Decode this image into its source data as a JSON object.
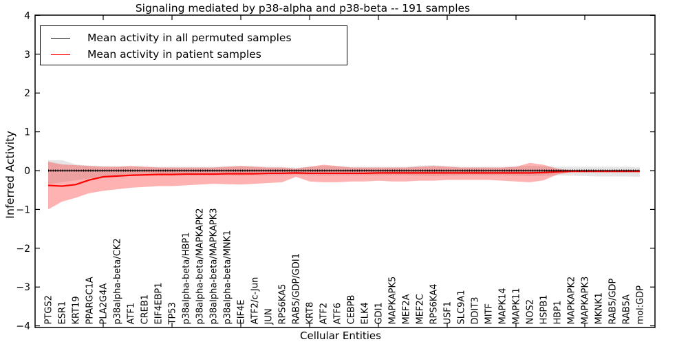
{
  "title": "Signaling mediated by p38-alpha and p38-beta -- 191 samples",
  "legend": [
    {
      "label": "Mean activity in all permuted samples",
      "color": "#000000"
    },
    {
      "label": "Mean activity in patient samples",
      "color": "#ff0000"
    }
  ],
  "axes": {
    "ylabel": "Inferred Activity",
    "xlabel": "Cellular Entities",
    "ytick_labels": [
      "4",
      "3",
      "2",
      "1",
      "0",
      "−1",
      "−2",
      "−3",
      "−4"
    ]
  },
  "chart_data": {
    "type": "line",
    "title": "Signaling mediated by p38-alpha and p38-beta -- 191 samples",
    "xlabel": "Cellular Entities",
    "ylabel": "Inferred Activity",
    "ylim": [
      -4,
      4
    ],
    "ytick_values": [
      4,
      3,
      2,
      1,
      0,
      -1,
      -2,
      -3,
      -4
    ],
    "xtick_positions": [
      5,
      10,
      15,
      20,
      25,
      30,
      35,
      40
    ],
    "grid": false,
    "legend_position": "upper left",
    "band_colors": {
      "permuted": "rgba(0,0,0,0.10)",
      "patient": "rgba(255,0,0,0.30)"
    },
    "categories": [
      "PTGS2",
      "ESR1",
      "KRT19",
      "PPARGC1A",
      "PLA2G4A",
      "p38alpha-beta/CK2",
      "ATF1",
      "CREB1",
      "EIF4EBP1",
      "TP53",
      "p38alpha-beta/HBP1",
      "p38alpha-beta/MAPKAPK2",
      "p38alpha-beta/MAPKAPK3",
      "p38alpha-beta/MNK1",
      "EIF4E",
      "ATF2/c-Jun",
      "JUN",
      "RPS6KA5",
      "RAB5/GDP/GDI1",
      "KRT8",
      "ATF2",
      "ATF6",
      "CEBPB",
      "ELK4",
      "GDI1",
      "MAPKAPK5",
      "MEF2A",
      "MEF2C",
      "RPS6KA4",
      "USF1",
      "SLC9A1",
      "DDIT3",
      "MITF",
      "MAPK14",
      "MAPK11",
      "NOS2",
      "HSPB1",
      "HBP1",
      "MAPKAPK2",
      "MAPKAPK3",
      "MKNK1",
      "RAB5/GDP",
      "RAB5A",
      "mol:GDP"
    ],
    "series": [
      {
        "name": "Mean activity in all permuted samples",
        "color": "#000000",
        "values": [
          0,
          0,
          0,
          0,
          0,
          0,
          0,
          0,
          0,
          0,
          0,
          0,
          0,
          0,
          0,
          0,
          0,
          0,
          0,
          0,
          0,
          0,
          0,
          0,
          0,
          0,
          0,
          0,
          0,
          0,
          0,
          0,
          0,
          0,
          0,
          0,
          0,
          0,
          0,
          0,
          0,
          0,
          0,
          0
        ],
        "band_upper": [
          0.27,
          0.27,
          0.16,
          0.13,
          0.12,
          0.11,
          0.11,
          0.1,
          0.1,
          0.1,
          0.1,
          0.1,
          0.1,
          0.11,
          0.12,
          0.11,
          0.1,
          0.1,
          0.08,
          0.1,
          0.12,
          0.11,
          0.1,
          0.1,
          0.1,
          0.1,
          0.1,
          0.13,
          0.14,
          0.12,
          0.1,
          0.1,
          0.1,
          0.1,
          0.11,
          0.12,
          0.11,
          0.1,
          0.1,
          0.1,
          0.1,
          0.1,
          0.1,
          0.09
        ],
        "band_lower": [
          -0.35,
          -0.3,
          -0.25,
          -0.2,
          -0.16,
          -0.14,
          -0.13,
          -0.12,
          -0.12,
          -0.12,
          -0.12,
          -0.12,
          -0.12,
          -0.12,
          -0.13,
          -0.12,
          -0.12,
          -0.12,
          -0.1,
          -0.12,
          -0.13,
          -0.12,
          -0.12,
          -0.12,
          -0.12,
          -0.12,
          -0.12,
          -0.13,
          -0.14,
          -0.13,
          -0.12,
          -0.12,
          -0.12,
          -0.12,
          -0.13,
          -0.14,
          -0.13,
          -0.12,
          -0.13,
          -0.14,
          -0.15,
          -0.15,
          -0.15,
          -0.16
        ]
      },
      {
        "name": "Mean activity in patient samples",
        "color": "#ff0000",
        "values": [
          -0.38,
          -0.4,
          -0.36,
          -0.24,
          -0.16,
          -0.14,
          -0.12,
          -0.11,
          -0.1,
          -0.1,
          -0.09,
          -0.09,
          -0.09,
          -0.08,
          -0.08,
          -0.08,
          -0.07,
          -0.07,
          -0.06,
          -0.07,
          -0.07,
          -0.07,
          -0.07,
          -0.07,
          -0.06,
          -0.06,
          -0.06,
          -0.06,
          -0.06,
          -0.06,
          -0.06,
          -0.06,
          -0.06,
          -0.06,
          -0.06,
          -0.06,
          -0.05,
          -0.03,
          -0.02,
          -0.02,
          -0.02,
          -0.02,
          -0.02,
          -0.02
        ],
        "band_upper": [
          0.23,
          0.16,
          0.14,
          0.12,
          0.1,
          0.1,
          0.12,
          0.1,
          0.08,
          0.08,
          0.08,
          0.08,
          0.08,
          0.1,
          0.12,
          0.1,
          0.08,
          0.08,
          0.05,
          0.1,
          0.15,
          0.12,
          0.08,
          0.08,
          0.08,
          0.08,
          0.08,
          0.1,
          0.12,
          0.1,
          0.08,
          0.08,
          0.08,
          0.08,
          0.1,
          0.2,
          0.15,
          0.05,
          0.01,
          0.01,
          0.01,
          0.01,
          0.01,
          0.01
        ],
        "band_lower": [
          -1.0,
          -0.8,
          -0.7,
          -0.58,
          -0.52,
          -0.48,
          -0.44,
          -0.42,
          -0.4,
          -0.4,
          -0.38,
          -0.36,
          -0.34,
          -0.35,
          -0.36,
          -0.34,
          -0.32,
          -0.3,
          -0.16,
          -0.28,
          -0.3,
          -0.3,
          -0.28,
          -0.28,
          -0.26,
          -0.28,
          -0.28,
          -0.26,
          -0.26,
          -0.24,
          -0.24,
          -0.24,
          -0.24,
          -0.26,
          -0.28,
          -0.3,
          -0.25,
          -0.1,
          -0.04,
          -0.04,
          -0.04,
          -0.04,
          -0.04,
          -0.04
        ]
      }
    ]
  }
}
